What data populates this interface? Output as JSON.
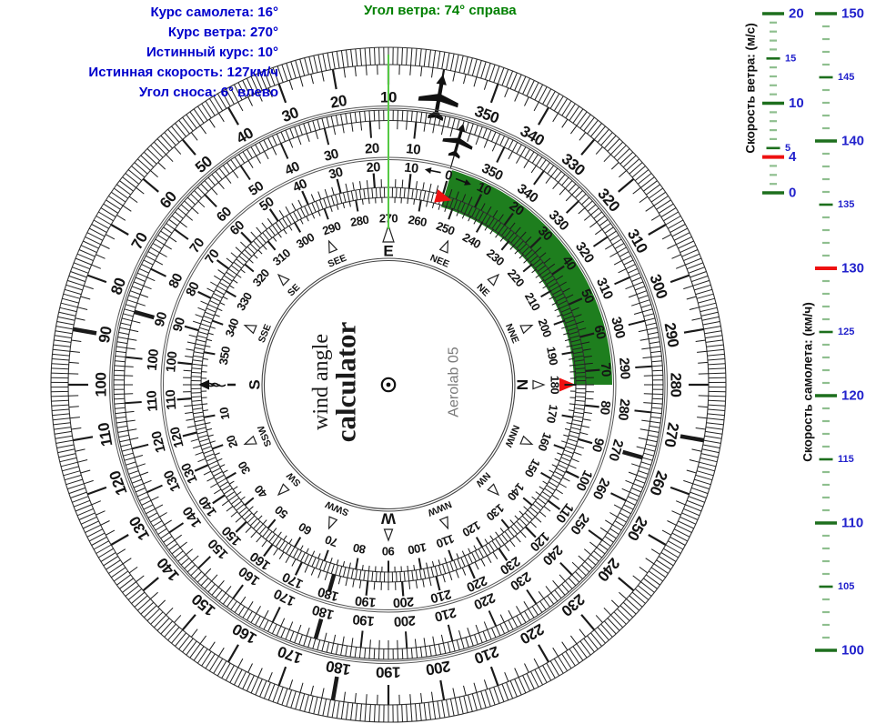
{
  "header": {
    "flight_info_lines": [
      "Курс самолета: 16°",
      "Курс ветра: 270°",
      "Истинный курс: 10°",
      "Истинная скорость: 127км/ч",
      "Угол сноса: 6° влево"
    ],
    "wind_angle_line": "Угол ветра: 74° справа"
  },
  "values": {
    "aircraft_course_deg": 16,
    "wind_course_deg": 270,
    "true_course_deg": 10,
    "true_speed_kmh": 127,
    "drift_deg": 6,
    "drift_side": "влево",
    "wind_angle_deg": 74,
    "wind_angle_side": "справа",
    "wind_speed_ms": 4,
    "aircraft_speed_kmh": 130
  },
  "dial": {
    "center_title_line1": "wind angle",
    "center_title_line2": "calculator",
    "brand": "Aerolab 05",
    "rose_labels": [
      "E",
      "NEE",
      "NE",
      "NNE",
      "N",
      "NNW",
      "NW",
      "NWW",
      "W",
      "SWW",
      "SW",
      "SSW",
      "S",
      "SSE",
      "SE",
      "SEE"
    ],
    "rose_cardinals": [
      "E",
      "N",
      "W",
      "S"
    ],
    "rings": {
      "outer_course_ring": {
        "zero_position_deg": 10,
        "labels_from": 10,
        "labels_to": 350,
        "label_step": 10,
        "minor_step_deg": 2,
        "numbers_increase": "counterclockwise",
        "bold_tick_every_deg": 45,
        "zero_marker": "airplane-large"
      },
      "heading_ring": {
        "zero_position_deg": 16,
        "labels_from": 10,
        "labels_to": 350,
        "label_step": 10,
        "minor_step_deg": 2,
        "numbers_increase": "counterclockwise",
        "bold_tick_every_deg": 45,
        "zero_marker": "airplane-small"
      },
      "drift_ring": {
        "zero_position_deg": 16,
        "zero_label": "0",
        "left_labels_from": 10,
        "left_labels_to": 230,
        "right_labels_from": 10,
        "right_labels_to": 120,
        "label_step": 10,
        "minor_step_deg": 2,
        "bold_tick_at": 180,
        "green_arc_start": 0,
        "green_arc_end": 74,
        "green_labels_from": 10,
        "green_labels_to": 70
      },
      "wind_ring": {
        "zero_position_deg": 270,
        "labels_from": 10,
        "labels_to": 350,
        "label_step": 10,
        "minor_step_deg": 2,
        "numbers_increase": "counterclockwise",
        "zero_marker": "wind-arrow"
      }
    }
  },
  "scales": {
    "wind_speed": {
      "title": "Скорость ветра: (м/с)",
      "min": 0,
      "max": 20,
      "major_step": 10,
      "medium_step": 5,
      "minor_step": 1,
      "red_value": 4
    },
    "aircraft_speed": {
      "title": "Скорость самолета: (км/ч)",
      "min": 100,
      "max": 150,
      "major_step": 10,
      "medium_step": 5,
      "minor_step": 1,
      "red_value": 130
    }
  },
  "colors": {
    "info_text": "#0000cc",
    "wind_angle_text": "#008000",
    "green_arc": "#1e7e1e",
    "red_marker": "#ee1111",
    "scale_major_tick": "#1d6f1d",
    "scale_minor_tick": "#8fbf8f",
    "scale_label": "#2222cc",
    "pointer_line": "#55c944",
    "tick": "#1a1a1a"
  }
}
